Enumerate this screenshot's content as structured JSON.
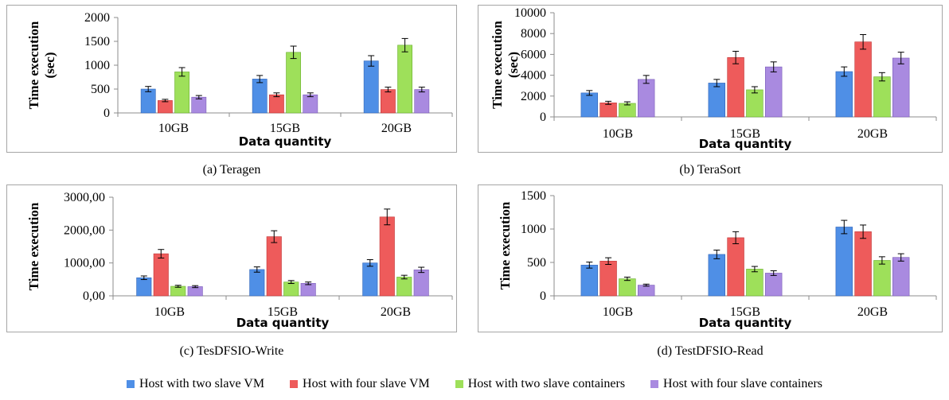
{
  "legend": [
    {
      "label": "Host with two slave VM",
      "color": "#4f8fe6"
    },
    {
      "label": "Host with four slave VM",
      "color": "#ee5b5b"
    },
    {
      "label": "Host with two slave containers",
      "color": "#9ee05a"
    },
    {
      "label": "Host with four slave containers",
      "color": "#a98ae0"
    }
  ],
  "chart_data": [
    {
      "id": "a",
      "type": "bar",
      "caption": "(a) Teragen",
      "ylabel": "Time execution (sec)",
      "xlabel": "Data quantity",
      "categories": [
        "10GB",
        "15GB",
        "20GB"
      ],
      "ylim": [
        0,
        2000
      ],
      "yticks": [
        "0",
        "500",
        "1000",
        "1500",
        "2000"
      ],
      "yticks_v": [
        0,
        500,
        1000,
        1500,
        2000
      ],
      "series": [
        {
          "name": "Host with two slave VM",
          "values": [
            500,
            710,
            1090
          ],
          "err": [
            55,
            75,
            110
          ]
        },
        {
          "name": "Host with four slave VM",
          "values": [
            260,
            380,
            490
          ],
          "err": [
            25,
            40,
            50
          ]
        },
        {
          "name": "Host with two slave containers",
          "values": [
            860,
            1270,
            1420
          ],
          "err": [
            90,
            130,
            140
          ]
        },
        {
          "name": "Host with four slave containers",
          "values": [
            330,
            380,
            490
          ],
          "err": [
            35,
            40,
            50
          ]
        }
      ]
    },
    {
      "id": "b",
      "type": "bar",
      "caption": "(b) TeraSort",
      "ylabel": "Time execution (sec)",
      "xlabel": "Data quantity",
      "categories": [
        "10GB",
        "15GB",
        "20GB"
      ],
      "ylim": [
        0,
        10000
      ],
      "yticks": [
        "0",
        "2000",
        "4000",
        "6000",
        "8000",
        "10000"
      ],
      "yticks_v": [
        0,
        2000,
        4000,
        6000,
        8000,
        10000
      ],
      "series": [
        {
          "name": "Host with two slave VM",
          "values": [
            2300,
            3250,
            4350
          ],
          "err": [
            230,
            350,
            450
          ]
        },
        {
          "name": "Host with four slave VM",
          "values": [
            1350,
            5700,
            7200
          ],
          "err": [
            150,
            600,
            700
          ]
        },
        {
          "name": "Host with two slave containers",
          "values": [
            1300,
            2600,
            3850
          ],
          "err": [
            150,
            300,
            400
          ]
        },
        {
          "name": "Host with four slave containers",
          "values": [
            3600,
            4800,
            5650
          ],
          "err": [
            380,
            480,
            560
          ]
        }
      ]
    },
    {
      "id": "c",
      "type": "bar",
      "caption": "(c) TesDFSIO-Write",
      "ylabel": "Time execution",
      "xlabel": "Data quantity",
      "categories": [
        "10GB",
        "15GB",
        "20GB"
      ],
      "ylim": [
        0,
        3000
      ],
      "yticks": [
        "0,00",
        "1000,00",
        "2000,00",
        "3000,00"
      ],
      "yticks_v": [
        0,
        1000,
        2000,
        3000
      ],
      "series": [
        {
          "name": "Host with two slave VM",
          "values": [
            550,
            800,
            1000
          ],
          "err": [
            55,
            80,
            100
          ]
        },
        {
          "name": "Host with four slave VM",
          "values": [
            1280,
            1800,
            2400
          ],
          "err": [
            130,
            180,
            240
          ]
        },
        {
          "name": "Host with two slave containers",
          "values": [
            290,
            420,
            570
          ],
          "err": [
            30,
            45,
            55
          ]
        },
        {
          "name": "Host with four slave containers",
          "values": [
            280,
            380,
            790
          ],
          "err": [
            30,
            40,
            80
          ]
        }
      ]
    },
    {
      "id": "d",
      "type": "bar",
      "caption": "(d) TestDFSIO-Read",
      "ylabel": "Time execution",
      "xlabel": "Data quantity",
      "categories": [
        "10GB",
        "15GB",
        "20GB"
      ],
      "ylim": [
        0,
        1500
      ],
      "yticks": [
        "0",
        "500",
        "1000",
        "1500"
      ],
      "yticks_v": [
        0,
        500,
        1000,
        1500
      ],
      "series": [
        {
          "name": "Host with two slave VM",
          "values": [
            460,
            620,
            1030
          ],
          "err": [
            45,
            65,
            100
          ]
        },
        {
          "name": "Host with four slave VM",
          "values": [
            520,
            870,
            960
          ],
          "err": [
            50,
            90,
            100
          ]
        },
        {
          "name": "Host with two slave containers",
          "values": [
            255,
            400,
            530
          ],
          "err": [
            25,
            40,
            55
          ]
        },
        {
          "name": "Host with four slave containers",
          "values": [
            160,
            340,
            575
          ],
          "err": [
            15,
            35,
            55
          ]
        }
      ]
    }
  ]
}
